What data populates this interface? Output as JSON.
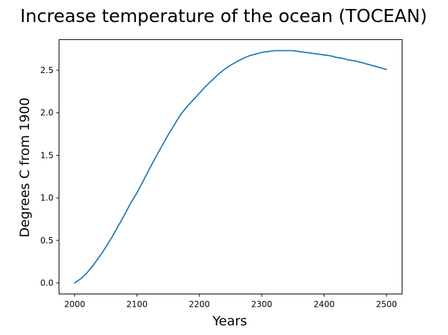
{
  "chart_data": {
    "type": "line",
    "title": "Increase temperature of the ocean (TOCEAN)",
    "xlabel": "Years",
    "ylabel": "Degrees C from 1900",
    "xlim": [
      1975,
      2525
    ],
    "ylim": [
      -0.13,
      2.86
    ],
    "grid": false,
    "xticks": [
      2000,
      2100,
      2200,
      2300,
      2400,
      2500
    ],
    "xtick_labels": [
      "2000",
      "2100",
      "2200",
      "2300",
      "2400",
      "2500"
    ],
    "yticks": [
      0.0,
      0.5,
      1.0,
      1.5,
      2.0,
      2.5
    ],
    "ytick_labels": [
      "0.0",
      "0.5",
      "1.0",
      "1.5",
      "2.0",
      "2.5"
    ],
    "series": [
      {
        "color": "#1f77b4",
        "x": [
          2000,
          2010,
          2020,
          2030,
          2040,
          2050,
          2060,
          2070,
          2080,
          2090,
          2100,
          2110,
          2120,
          2130,
          2140,
          2150,
          2160,
          2170,
          2180,
          2190,
          2200,
          2210,
          2220,
          2230,
          2240,
          2250,
          2260,
          2270,
          2280,
          2290,
          2300,
          2310,
          2320,
          2330,
          2340,
          2350,
          2360,
          2370,
          2380,
          2390,
          2400,
          2410,
          2420,
          2430,
          2440,
          2450,
          2460,
          2470,
          2480,
          2490,
          2500
        ],
        "y": [
          0.0,
          0.05,
          0.12,
          0.21,
          0.31,
          0.42,
          0.54,
          0.67,
          0.8,
          0.94,
          1.06,
          1.2,
          1.34,
          1.48,
          1.61,
          1.74,
          1.86,
          1.98,
          2.07,
          2.15,
          2.23,
          2.31,
          2.38,
          2.45,
          2.51,
          2.56,
          2.6,
          2.64,
          2.67,
          2.69,
          2.71,
          2.72,
          2.73,
          2.73,
          2.73,
          2.73,
          2.72,
          2.71,
          2.7,
          2.69,
          2.68,
          2.67,
          2.65,
          2.64,
          2.62,
          2.61,
          2.59,
          2.57,
          2.55,
          2.53,
          2.51
        ]
      }
    ]
  }
}
